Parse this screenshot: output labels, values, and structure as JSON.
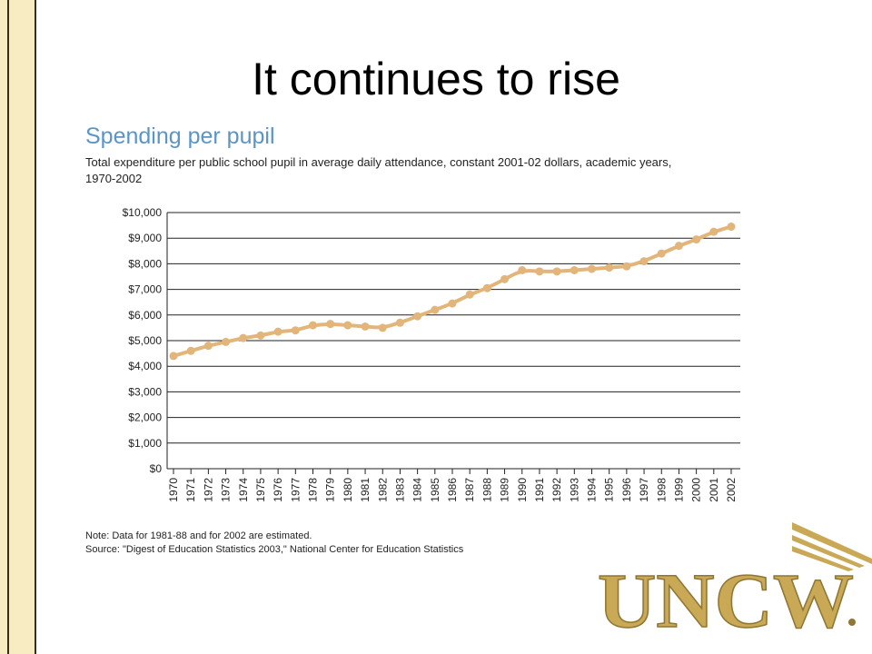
{
  "slide": {
    "title": "It continues to rise"
  },
  "logo": {
    "text": "UNCW"
  },
  "colors": {
    "sidebar": "#f8ecc2",
    "series": "#e2b57a",
    "title_blue": "#5b95c6",
    "logo_gold": "#c9a955"
  },
  "chart_data": {
    "type": "line",
    "title": "Spending per pupil",
    "subtitle_line1": "Total expenditure per public school pupil in average daily attendance, constant 2001-02 dollars, academic years,",
    "subtitle_line2": "1970-2002",
    "x": [
      "1970",
      "1971",
      "1972",
      "1973",
      "1974",
      "1975",
      "1976",
      "1977",
      "1978",
      "1979",
      "1980",
      "1981",
      "1982",
      "1983",
      "1984",
      "1985",
      "1986",
      "1987",
      "1988",
      "1989",
      "1990",
      "1991",
      "1992",
      "1993",
      "1994",
      "1995",
      "1996",
      "1997",
      "1998",
      "1999",
      "2000",
      "2001",
      "2002"
    ],
    "y_tick_labels": [
      "$0",
      "$1,000",
      "$2,000",
      "$3,000",
      "$4,000",
      "$5,000",
      "$6,000",
      "$7,000",
      "$8,000",
      "$9,000",
      "$10,000"
    ],
    "ylim": [
      0,
      10000
    ],
    "series": [
      {
        "points": [
          4400,
          4600,
          4800,
          4950,
          5100,
          5200,
          5350,
          5400,
          5600,
          5650,
          5600,
          5550,
          5500,
          5700,
          5950,
          6200,
          6450,
          6800,
          7050,
          7400,
          7750,
          7700,
          7700,
          7750,
          7800,
          7850,
          7900,
          8100,
          8400,
          8700,
          8950,
          9250,
          9450
        ]
      }
    ],
    "grid": true,
    "note": "Note: Data for 1981-88 and for 2002 are estimated.",
    "source": "Source: \"Digest of Education Statistics 2003,\" National Center for Education Statistics"
  }
}
